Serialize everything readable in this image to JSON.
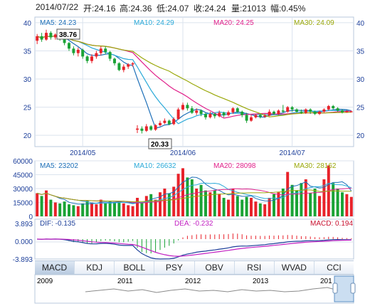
{
  "header": {
    "date": "2014/07/22",
    "open_label": "开:24.16",
    "high_label": "高:24.36",
    "low_label": "低:24.07",
    "close_label": "收:24.24",
    "volume_label": "量:21013",
    "change_label": "幅:0.45%"
  },
  "price_panel": {
    "ma_legend": [
      {
        "name": "MA5: 24.23",
        "color": "#1d6fb8"
      },
      {
        "name": "MA10: 24.29",
        "color": "#2aa9d8"
      },
      {
        "name": "MA20: 24.25",
        "color": "#e0208a"
      },
      {
        "name": "MA30: 24.09",
        "color": "#9aa80a"
      }
    ],
    "y_ticks_left": [
      "40",
      "35",
      "30",
      "25",
      "20"
    ],
    "y_ticks_right": [
      "40",
      "35",
      "30",
      "25",
      "20"
    ],
    "x_ticks": [
      "2014/05",
      "2014/06",
      "2014/07"
    ],
    "high_marker": "38.76",
    "low_marker": "20.33"
  },
  "volume_panel": {
    "ma_legend": [
      {
        "name": "MA5: 23202",
        "color": "#1d6fb8"
      },
      {
        "name": "MA10: 26632",
        "color": "#2aa9d8"
      },
      {
        "name": "MA20: 28098",
        "color": "#e0208a"
      },
      {
        "name": "MA30: 28162",
        "color": "#9aa80a"
      }
    ],
    "y_ticks": [
      "60000",
      "45000",
      "30000",
      "15000",
      "0"
    ]
  },
  "macd_panel": {
    "dif_label": "DIF: -0.135",
    "dea_label": "DEA: -0.232",
    "macd_label": "MACD: 0.194",
    "y_ticks": [
      "3.893",
      "0.000",
      "-3.893"
    ]
  },
  "indicator_tabs": [
    "MACD",
    "KDJ",
    "BOLL",
    "PSY",
    "OBV",
    "RSI",
    "WVAD",
    "CCI"
  ],
  "active_tab": "MACD",
  "navigator": {
    "years": [
      "2009",
      "2011",
      "2012",
      "2013",
      "201"
    ]
  },
  "colors": {
    "up": "#e8222a",
    "down": "#1aa336",
    "grid": "#dbe3ee",
    "frame": "#b9c9dc"
  },
  "chart_data": {
    "type": "candlestick",
    "ylim": [
      18,
      41
    ],
    "volume_ylim": [
      0,
      60000
    ],
    "macd_ylim": [
      -3.893,
      3.893
    ],
    "candles": [
      {
        "o": 36.8,
        "c": 37.6,
        "h": 38.0,
        "l": 36.2,
        "v": 25000
      },
      {
        "o": 37.6,
        "c": 37.0,
        "h": 38.2,
        "l": 36.6,
        "v": 22000
      },
      {
        "o": 37.0,
        "c": 38.2,
        "h": 38.76,
        "l": 36.8,
        "v": 28000
      },
      {
        "o": 38.2,
        "c": 37.4,
        "h": 38.5,
        "l": 37.0,
        "v": 18000
      },
      {
        "o": 37.4,
        "c": 37.9,
        "h": 38.1,
        "l": 37.0,
        "v": 15000
      },
      {
        "o": 37.9,
        "c": 37.2,
        "h": 38.0,
        "l": 36.8,
        "v": 14000
      },
      {
        "o": 37.2,
        "c": 36.4,
        "h": 37.4,
        "l": 36.0,
        "v": 16000
      },
      {
        "o": 36.4,
        "c": 35.4,
        "h": 36.6,
        "l": 35.0,
        "v": 13000
      },
      {
        "o": 35.4,
        "c": 34.6,
        "h": 35.8,
        "l": 34.2,
        "v": 12000
      },
      {
        "o": 34.6,
        "c": 35.2,
        "h": 35.6,
        "l": 34.0,
        "v": 11000
      },
      {
        "o": 35.2,
        "c": 34.0,
        "h": 35.4,
        "l": 33.6,
        "v": 14000
      },
      {
        "o": 34.0,
        "c": 33.2,
        "h": 34.2,
        "l": 32.8,
        "v": 17000
      },
      {
        "o": 33.2,
        "c": 34.0,
        "h": 34.4,
        "l": 32.8,
        "v": 15000
      },
      {
        "o": 34.0,
        "c": 34.6,
        "h": 35.0,
        "l": 33.6,
        "v": 13000
      },
      {
        "o": 34.6,
        "c": 35.4,
        "h": 35.8,
        "l": 34.2,
        "v": 18000
      },
      {
        "o": 35.4,
        "c": 34.8,
        "h": 35.8,
        "l": 34.4,
        "v": 14000
      },
      {
        "o": 34.8,
        "c": 33.6,
        "h": 35.0,
        "l": 33.2,
        "v": 16000
      },
      {
        "o": 33.6,
        "c": 32.8,
        "h": 33.8,
        "l": 32.4,
        "v": 15000
      },
      {
        "o": 32.8,
        "c": 31.6,
        "h": 33.0,
        "l": 31.4,
        "v": 16000
      },
      {
        "o": 31.6,
        "c": 32.2,
        "h": 32.6,
        "l": 31.2,
        "v": 14000
      },
      {
        "o": 32.2,
        "c": 32.6,
        "h": 32.8,
        "l": 31.8,
        "v": 12000
      },
      {
        "o": 32.6,
        "c": 32.8,
        "h": 33.0,
        "l": 32.2,
        "v": 11000
      },
      {
        "o": 21.0,
        "c": 21.2,
        "h": 21.8,
        "l": 20.4,
        "v": 20000
      },
      {
        "o": 21.2,
        "c": 20.8,
        "h": 21.6,
        "l": 20.33,
        "v": 15000
      },
      {
        "o": 20.8,
        "c": 21.6,
        "h": 22.0,
        "l": 20.6,
        "v": 22000
      },
      {
        "o": 21.6,
        "c": 21.0,
        "h": 21.8,
        "l": 20.8,
        "v": 24000
      },
      {
        "o": 21.0,
        "c": 21.8,
        "h": 22.0,
        "l": 20.8,
        "v": 18000
      },
      {
        "o": 21.8,
        "c": 22.2,
        "h": 22.6,
        "l": 21.6,
        "v": 26000
      },
      {
        "o": 22.2,
        "c": 22.6,
        "h": 23.0,
        "l": 22.0,
        "v": 30000
      },
      {
        "o": 22.6,
        "c": 22.0,
        "h": 22.8,
        "l": 21.8,
        "v": 25000
      },
      {
        "o": 22.0,
        "c": 22.9,
        "h": 23.2,
        "l": 21.8,
        "v": 32000
      },
      {
        "o": 22.9,
        "c": 24.6,
        "h": 24.9,
        "l": 22.8,
        "v": 46000
      },
      {
        "o": 24.6,
        "c": 25.4,
        "h": 25.8,
        "l": 24.4,
        "v": 52000
      },
      {
        "o": 25.4,
        "c": 24.8,
        "h": 25.8,
        "l": 24.4,
        "v": 42000
      },
      {
        "o": 24.8,
        "c": 24.0,
        "h": 25.2,
        "l": 23.8,
        "v": 40000
      },
      {
        "o": 24.0,
        "c": 24.4,
        "h": 24.8,
        "l": 23.6,
        "v": 30000
      },
      {
        "o": 24.4,
        "c": 23.8,
        "h": 24.6,
        "l": 23.4,
        "v": 34000
      },
      {
        "o": 23.8,
        "c": 23.2,
        "h": 24.0,
        "l": 22.8,
        "v": 28000
      },
      {
        "o": 23.2,
        "c": 23.8,
        "h": 24.2,
        "l": 23.0,
        "v": 26000
      },
      {
        "o": 23.8,
        "c": 23.4,
        "h": 24.0,
        "l": 23.0,
        "v": 28000
      },
      {
        "o": 23.4,
        "c": 24.0,
        "h": 24.4,
        "l": 23.2,
        "v": 24000
      },
      {
        "o": 24.0,
        "c": 23.6,
        "h": 24.2,
        "l": 23.2,
        "v": 20000
      },
      {
        "o": 23.6,
        "c": 24.1,
        "h": 24.4,
        "l": 23.4,
        "v": 18000
      },
      {
        "o": 24.1,
        "c": 24.8,
        "h": 25.0,
        "l": 23.8,
        "v": 30000
      },
      {
        "o": 24.8,
        "c": 24.2,
        "h": 25.0,
        "l": 24.0,
        "v": 22000
      },
      {
        "o": 24.2,
        "c": 23.6,
        "h": 24.4,
        "l": 23.2,
        "v": 18000
      },
      {
        "o": 23.6,
        "c": 22.6,
        "h": 24.0,
        "l": 22.2,
        "v": 21000
      },
      {
        "o": 22.6,
        "c": 23.2,
        "h": 23.6,
        "l": 22.4,
        "v": 20000
      },
      {
        "o": 23.2,
        "c": 23.6,
        "h": 23.8,
        "l": 23.0,
        "v": 16000
      },
      {
        "o": 23.6,
        "c": 23.3,
        "h": 23.8,
        "l": 23.0,
        "v": 14000
      },
      {
        "o": 23.3,
        "c": 23.5,
        "h": 23.8,
        "l": 23.1,
        "v": 13000
      },
      {
        "o": 23.5,
        "c": 24.2,
        "h": 24.6,
        "l": 23.4,
        "v": 20000
      },
      {
        "o": 24.2,
        "c": 23.8,
        "h": 24.4,
        "l": 23.6,
        "v": 24000
      },
      {
        "o": 23.8,
        "c": 24.4,
        "h": 24.6,
        "l": 23.6,
        "v": 26000
      },
      {
        "o": 24.4,
        "c": 24.2,
        "h": 25.4,
        "l": 24.0,
        "v": 30000
      },
      {
        "o": 24.2,
        "c": 25.0,
        "h": 25.2,
        "l": 24.0,
        "v": 48000
      },
      {
        "o": 25.0,
        "c": 24.6,
        "h": 25.2,
        "l": 24.2,
        "v": 34000
      },
      {
        "o": 24.6,
        "c": 24.2,
        "h": 24.8,
        "l": 24.0,
        "v": 28000
      },
      {
        "o": 24.2,
        "c": 24.0,
        "h": 24.6,
        "l": 23.8,
        "v": 36000
      },
      {
        "o": 24.0,
        "c": 24.6,
        "h": 24.8,
        "l": 23.8,
        "v": 40000
      },
      {
        "o": 24.6,
        "c": 24.2,
        "h": 24.8,
        "l": 23.8,
        "v": 25000
      },
      {
        "o": 24.2,
        "c": 23.8,
        "h": 24.4,
        "l": 23.6,
        "v": 30000
      },
      {
        "o": 23.8,
        "c": 24.2,
        "h": 24.4,
        "l": 23.6,
        "v": 22000
      },
      {
        "o": 24.2,
        "c": 24.6,
        "h": 24.8,
        "l": 24.0,
        "v": 40000
      },
      {
        "o": 24.6,
        "c": 25.2,
        "h": 25.4,
        "l": 24.4,
        "v": 55000
      },
      {
        "o": 25.2,
        "c": 24.8,
        "h": 25.4,
        "l": 24.6,
        "v": 36000
      },
      {
        "o": 24.8,
        "c": 24.4,
        "h": 25.0,
        "l": 24.2,
        "v": 30000
      },
      {
        "o": 24.4,
        "c": 24.1,
        "h": 24.6,
        "l": 23.9,
        "v": 26000
      },
      {
        "o": 24.1,
        "c": 24.3,
        "h": 24.5,
        "l": 24.0,
        "v": 24000
      },
      {
        "o": 24.16,
        "c": 24.24,
        "h": 24.36,
        "l": 24.07,
        "v": 21013
      }
    ]
  }
}
